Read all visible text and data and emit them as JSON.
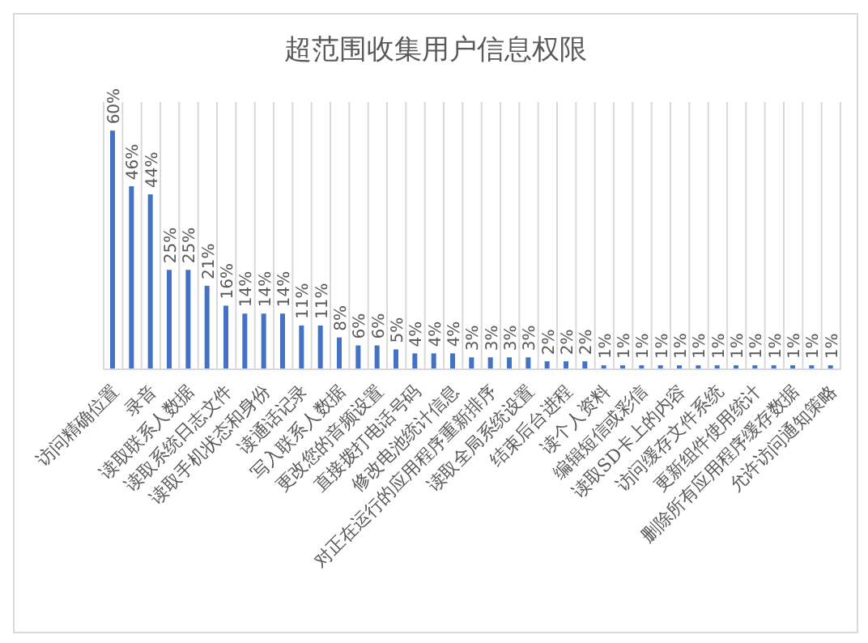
{
  "chart_data": {
    "type": "bar",
    "title": "超范围收集用户信息权限",
    "categories": [
      "访问精确位置",
      null,
      "录音",
      null,
      "读取联系人数据",
      null,
      "读取系统日志文件",
      null,
      "读取手机状态和身份",
      null,
      "读通话记录",
      null,
      "写入联系人数据",
      null,
      "更改您的音频设置",
      null,
      "直接拨打电话号码",
      null,
      "修改电池统计信息",
      null,
      "对正在运行的应用程序重新排序",
      null,
      "读取全局系统设置",
      null,
      "结束后台进程",
      null,
      "读个人资料",
      null,
      "编辑短信或彩信",
      null,
      "读取SD卡上的内容",
      null,
      "访问缓存文件系统",
      null,
      "更新组件使用统计",
      null,
      "删除所有应用程序缓存数据",
      null,
      "允许访问通知策略"
    ],
    "values": [
      60,
      46,
      44,
      25,
      25,
      21,
      16,
      14,
      14,
      14,
      11,
      11,
      8,
      6,
      6,
      5,
      4,
      4,
      4,
      3,
      3,
      3,
      3,
      2,
      2,
      2,
      1,
      1,
      1,
      1,
      1,
      1,
      1,
      1,
      1,
      1,
      1,
      1,
      1
    ],
    "value_labels": [
      "60%",
      "46%",
      "44%",
      "25%",
      "25%",
      "21%",
      "16%",
      "14%",
      "14%",
      "14%",
      "11%",
      "11%",
      "8%",
      "6%",
      "6%",
      "5%",
      "4%",
      "4%",
      "4%",
      "3%",
      "3%",
      "3%",
      "3%",
      "2%",
      "2%",
      "2%",
      "1%",
      "1%",
      "1%",
      "1%",
      "1%",
      "1%",
      "1%",
      "1%",
      "1%",
      "1%",
      "1%",
      "1%",
      "1%"
    ],
    "color": "#4472c4",
    "grid": "x"
  }
}
